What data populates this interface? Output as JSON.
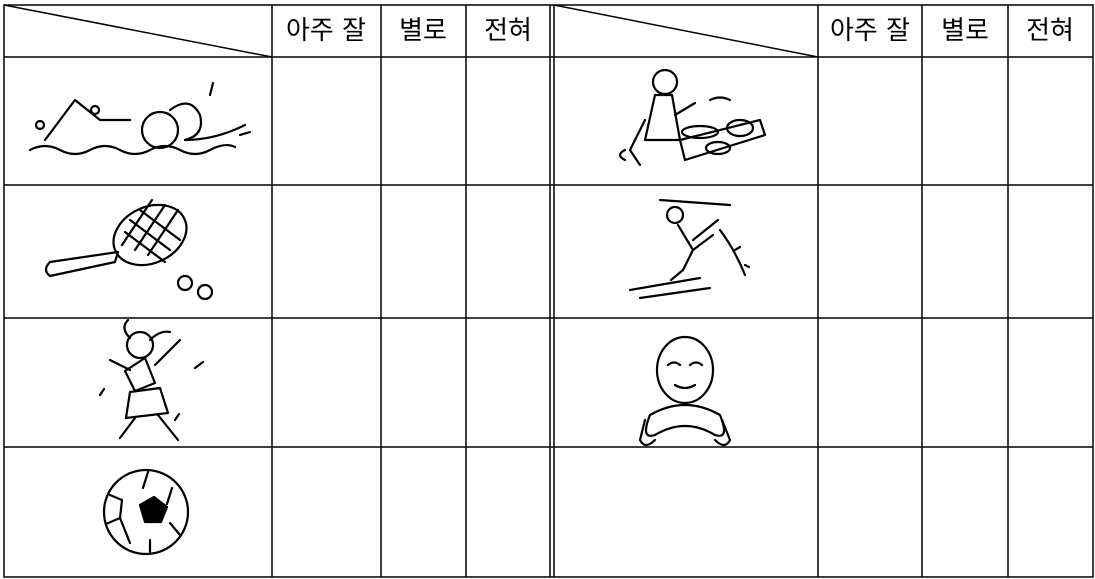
{
  "table": {
    "headers": [
      [
        "아주 잘",
        "별로",
        "전혀"
      ],
      [
        "아주 잘",
        "별로",
        "전혀"
      ]
    ]
  }
}
